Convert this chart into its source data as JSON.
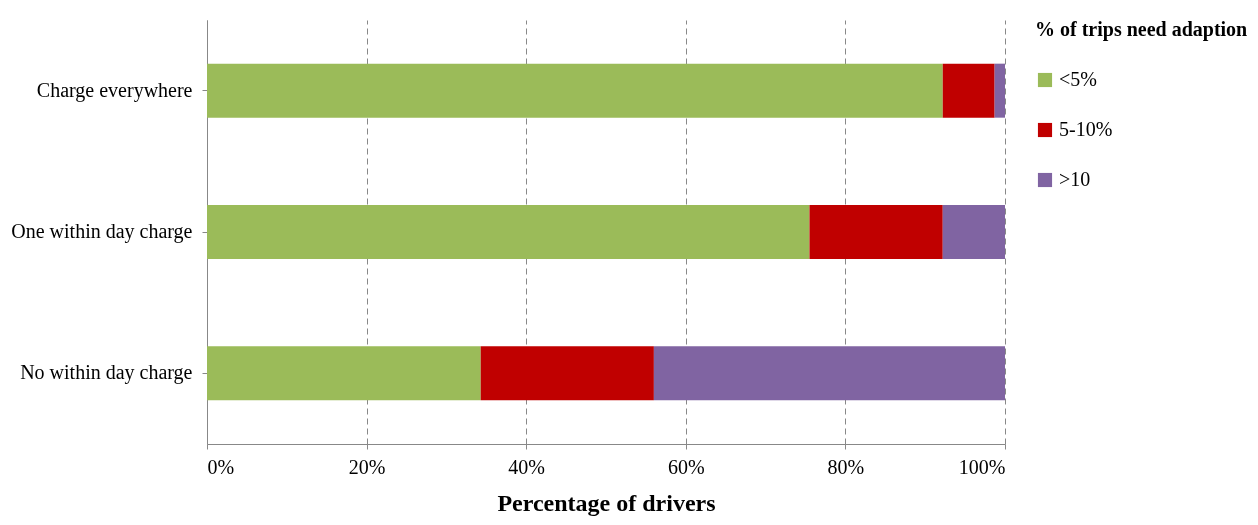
{
  "chart_data": {
    "type": "bar",
    "orientation": "horizontal",
    "stacked": true,
    "xlabel": "Percentage of drivers",
    "legend_title": "% of trips need adaption",
    "legend": "right",
    "categories": [
      "Charge everywhere",
      "One within day charge",
      "No within day charge"
    ],
    "series": [
      {
        "name": "<5%",
        "color": "#9bbb59",
        "values": [
          92.2,
          75.5,
          34.3
        ]
      },
      {
        "name": "5-10%",
        "color": "#c00000",
        "values": [
          6.5,
          16.7,
          21.7
        ]
      },
      {
        "name": ">10",
        "color": "#8064a2",
        "values": [
          1.3,
          7.8,
          44.0
        ]
      }
    ],
    "xlim": [
      0,
      100
    ],
    "xticks": [
      {
        "value": 0,
        "label": "0%"
      },
      {
        "value": 20,
        "label": "20%"
      },
      {
        "value": 40,
        "label": "40%"
      },
      {
        "value": 60,
        "label": "60%"
      },
      {
        "value": 80,
        "label": "80%"
      },
      {
        "value": 100,
        "label": "100%"
      }
    ],
    "grid": "x"
  }
}
